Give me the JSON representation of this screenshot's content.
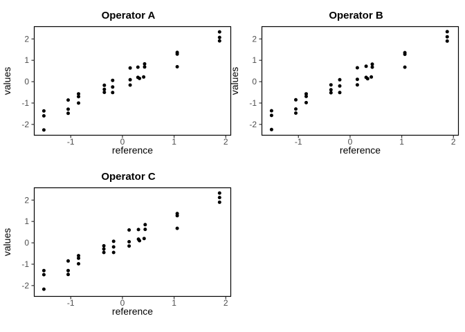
{
  "figure": {
    "background": "#ffffff",
    "colors": {
      "point": "#000000",
      "panel_border": "#000000",
      "tick": "#333333",
      "tick_label": "#4d4d4d",
      "axis_title": "#000000",
      "chart_title": "#000000"
    }
  },
  "chart_data": [
    {
      "type": "scatter",
      "title": "Operator A",
      "xlabel": "reference",
      "ylabel": "values",
      "xlim": [
        -1.7,
        2.09
      ],
      "ylim": [
        -2.49,
        2.56
      ],
      "x_ticks": [
        -1,
        0,
        1,
        2
      ],
      "y_ticks": [
        -2,
        -1,
        0,
        1,
        2
      ],
      "grid": false,
      "legend": null,
      "points": [
        [
          -1.52,
          -1.37
        ],
        [
          -1.52,
          -1.6
        ],
        [
          -1.52,
          -2.26
        ],
        [
          -1.05,
          -0.86
        ],
        [
          -1.05,
          -1.29
        ],
        [
          -1.05,
          -1.48
        ],
        [
          -0.85,
          -0.57
        ],
        [
          -0.85,
          -0.7
        ],
        [
          -0.85,
          -1.0
        ],
        [
          -0.35,
          -0.17
        ],
        [
          -0.35,
          -0.36
        ],
        [
          -0.35,
          -0.5
        ],
        [
          -0.19,
          0.06
        ],
        [
          -0.19,
          -0.25
        ],
        [
          -0.19,
          -0.51
        ],
        [
          0.15,
          0.64
        ],
        [
          0.15,
          0.09
        ],
        [
          0.15,
          -0.16
        ],
        [
          0.3,
          0.68
        ],
        [
          0.3,
          0.2
        ],
        [
          0.33,
          0.15
        ],
        [
          0.43,
          0.83
        ],
        [
          0.43,
          0.69
        ],
        [
          0.41,
          0.22
        ],
        [
          1.06,
          1.37
        ],
        [
          1.06,
          1.29
        ],
        [
          1.06,
          0.7
        ],
        [
          1.88,
          2.33
        ],
        [
          1.88,
          2.07
        ],
        [
          1.88,
          1.91
        ]
      ]
    },
    {
      "type": "scatter",
      "title": "Operator B",
      "xlabel": "reference",
      "ylabel": "values",
      "xlim": [
        -1.7,
        2.09
      ],
      "ylim": [
        -2.49,
        2.56
      ],
      "x_ticks": [
        -1,
        0,
        1,
        2
      ],
      "y_ticks": [
        -2,
        -1,
        0,
        1,
        2
      ],
      "grid": false,
      "legend": null,
      "points": [
        [
          -1.52,
          -1.36
        ],
        [
          -1.52,
          -1.58
        ],
        [
          -1.52,
          -2.24
        ],
        [
          -1.05,
          -0.85
        ],
        [
          -1.05,
          -1.28
        ],
        [
          -1.05,
          -1.47
        ],
        [
          -0.85,
          -0.57
        ],
        [
          -0.85,
          -0.69
        ],
        [
          -0.85,
          -0.98
        ],
        [
          -0.37,
          -0.15
        ],
        [
          -0.37,
          -0.38
        ],
        [
          -0.37,
          -0.52
        ],
        [
          -0.2,
          0.09
        ],
        [
          -0.2,
          -0.2
        ],
        [
          -0.2,
          -0.51
        ],
        [
          0.14,
          0.65
        ],
        [
          0.14,
          0.11
        ],
        [
          0.14,
          -0.15
        ],
        [
          0.31,
          0.72
        ],
        [
          0.31,
          0.2
        ],
        [
          0.34,
          0.14
        ],
        [
          0.43,
          0.82
        ],
        [
          0.43,
          0.68
        ],
        [
          0.41,
          0.22
        ],
        [
          1.06,
          1.36
        ],
        [
          1.06,
          1.28
        ],
        [
          1.06,
          0.68
        ],
        [
          1.88,
          2.34
        ],
        [
          1.88,
          2.1
        ],
        [
          1.88,
          1.9
        ]
      ]
    },
    {
      "type": "scatter",
      "title": "Operator C",
      "xlabel": "reference",
      "ylabel": "values",
      "xlim": [
        -1.7,
        2.09
      ],
      "ylim": [
        -2.49,
        2.56
      ],
      "x_ticks": [
        -1,
        0,
        1,
        2
      ],
      "y_ticks": [
        -2,
        -1,
        0,
        1,
        2
      ],
      "grid": false,
      "legend": null,
      "points": [
        [
          -1.52,
          -1.3
        ],
        [
          -1.52,
          -1.49
        ],
        [
          -1.52,
          -2.17
        ],
        [
          -1.05,
          -0.85
        ],
        [
          -1.05,
          -1.3
        ],
        [
          -1.05,
          -1.48
        ],
        [
          -0.85,
          -0.6
        ],
        [
          -0.85,
          -0.72
        ],
        [
          -0.85,
          -0.98
        ],
        [
          -0.36,
          -0.14
        ],
        [
          -0.36,
          -0.29
        ],
        [
          -0.36,
          -0.45
        ],
        [
          -0.17,
          0.07
        ],
        [
          -0.17,
          -0.19
        ],
        [
          -0.17,
          -0.45
        ],
        [
          0.13,
          0.6
        ],
        [
          0.13,
          0.05
        ],
        [
          0.13,
          -0.15
        ],
        [
          0.31,
          0.62
        ],
        [
          0.31,
          0.17
        ],
        [
          0.33,
          0.1
        ],
        [
          0.44,
          0.85
        ],
        [
          0.44,
          0.63
        ],
        [
          0.42,
          0.2
        ],
        [
          1.06,
          1.37
        ],
        [
          1.06,
          1.27
        ],
        [
          1.06,
          0.68
        ],
        [
          1.88,
          2.33
        ],
        [
          1.88,
          2.12
        ],
        [
          1.88,
          1.9
        ]
      ]
    }
  ]
}
